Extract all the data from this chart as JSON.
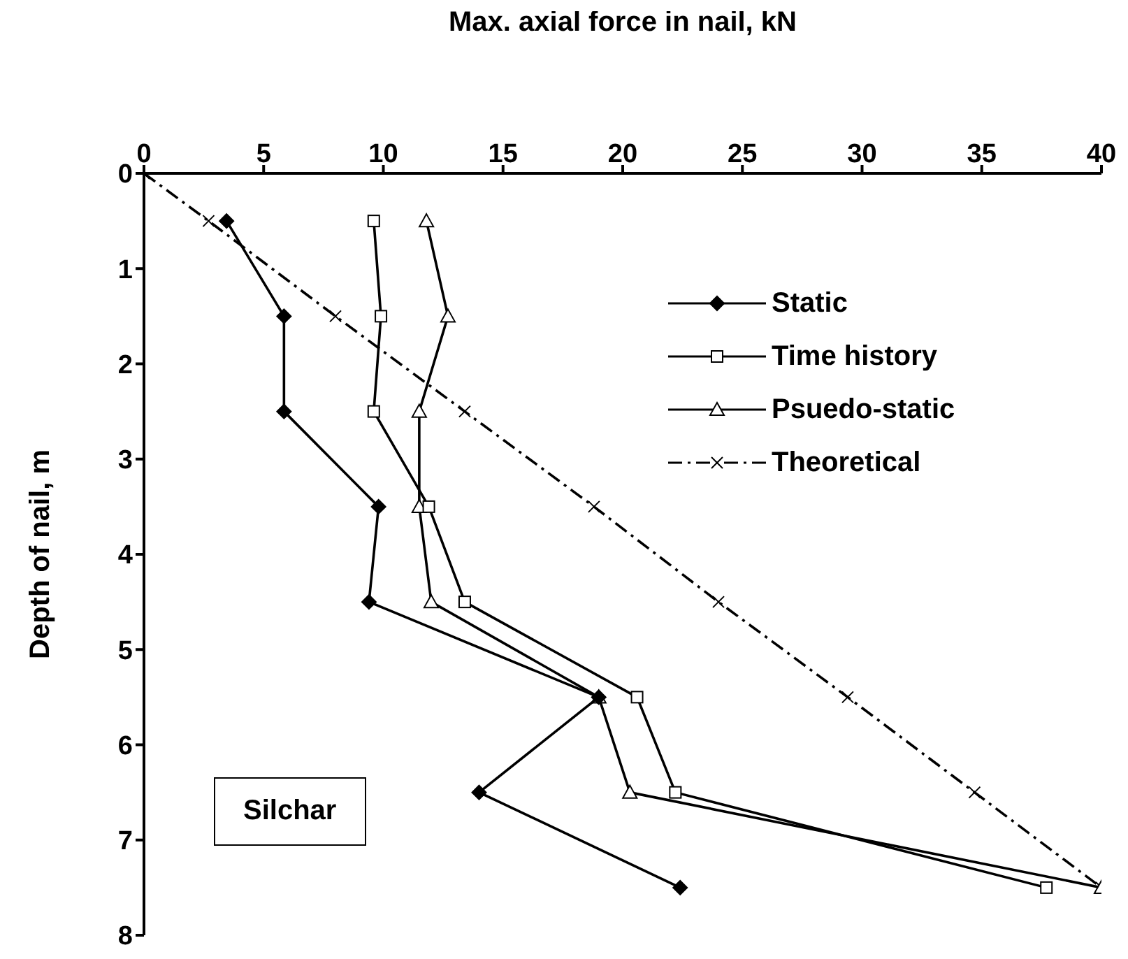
{
  "chart_data": {
    "type": "line",
    "xlabel": "Max. axial force in nail, kN",
    "ylabel": "Depth of nail, m",
    "xlim": [
      0,
      40
    ],
    "xticks": [
      0,
      5,
      10,
      15,
      20,
      25,
      30,
      35,
      40
    ],
    "ylim": [
      8,
      0
    ],
    "yticks": [
      0,
      1,
      2,
      3,
      4,
      5,
      6,
      7,
      8
    ],
    "grid": false,
    "legend": "top right",
    "annotations": [
      "Silchar"
    ],
    "series": [
      {
        "name": "Static",
        "color": "#000000",
        "marker": "diamond",
        "line_style": "solid",
        "x": [
          3.45,
          5.85,
          5.85,
          9.8,
          9.4,
          19.0,
          14.0,
          22.4
        ],
        "values": [
          0.5,
          1.5,
          2.5,
          3.5,
          4.5,
          5.5,
          6.5,
          7.5
        ]
      },
      {
        "name": "Time history",
        "color": "#000000",
        "marker": "square",
        "line_style": "solid",
        "x": [
          9.6,
          9.9,
          9.6,
          11.9,
          13.4,
          20.6,
          22.2,
          37.7
        ],
        "values": [
          0.5,
          1.5,
          2.5,
          3.5,
          4.5,
          5.5,
          6.5,
          7.5
        ]
      },
      {
        "name": "Psuedo-static",
        "color": "#000000",
        "marker": "triangle",
        "line_style": "solid",
        "x": [
          11.8,
          12.7,
          11.5,
          11.5,
          12.0,
          19.0,
          20.3,
          40
        ],
        "values": [
          0.5,
          1.5,
          2.5,
          3.5,
          4.5,
          5.5,
          6.5,
          7.5
        ]
      },
      {
        "name": "Theoretical",
        "color": "#000000",
        "marker": "cross",
        "line_style": "dashed",
        "x": [
          0,
          2.7,
          8.0,
          13.4,
          18.8,
          24.0,
          29.4,
          34.7,
          40
        ],
        "values": [
          0,
          0.5,
          1.5,
          2.5,
          3.5,
          4.5,
          5.5,
          6.5,
          7.5
        ]
      }
    ]
  }
}
